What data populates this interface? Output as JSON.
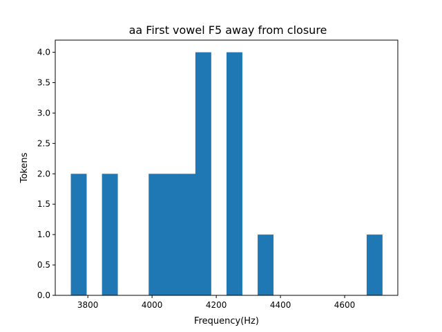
{
  "chart_data": {
    "type": "bar",
    "title": "aa First vowel F5 away from closure",
    "xlabel": "Frequency(Hz)",
    "ylabel": "Tokens",
    "bin_edges": [
      3747,
      3795.5,
      3844,
      3892.5,
      3941,
      3989.5,
      4038,
      4086.5,
      4135,
      4183.5,
      4232,
      4280.5,
      4329,
      4377.5,
      4426,
      4474.5,
      4523,
      4571.5,
      4620,
      4668.5,
      4717
    ],
    "values": [
      2,
      0,
      2,
      0,
      0,
      2,
      2,
      2,
      4,
      0,
      4,
      0,
      1,
      0,
      0,
      0,
      0,
      0,
      0,
      1
    ],
    "xlim": [
      3698.5,
      4765.5
    ],
    "ylim": [
      0,
      4.2
    ],
    "xticks": [
      3800,
      4000,
      4200,
      4400,
      4600
    ],
    "yticks": [
      0.0,
      0.5,
      1.0,
      1.5,
      2.0,
      2.5,
      3.0,
      3.5,
      4.0
    ],
    "bar_color": "#1f77b4",
    "grid": false
  }
}
